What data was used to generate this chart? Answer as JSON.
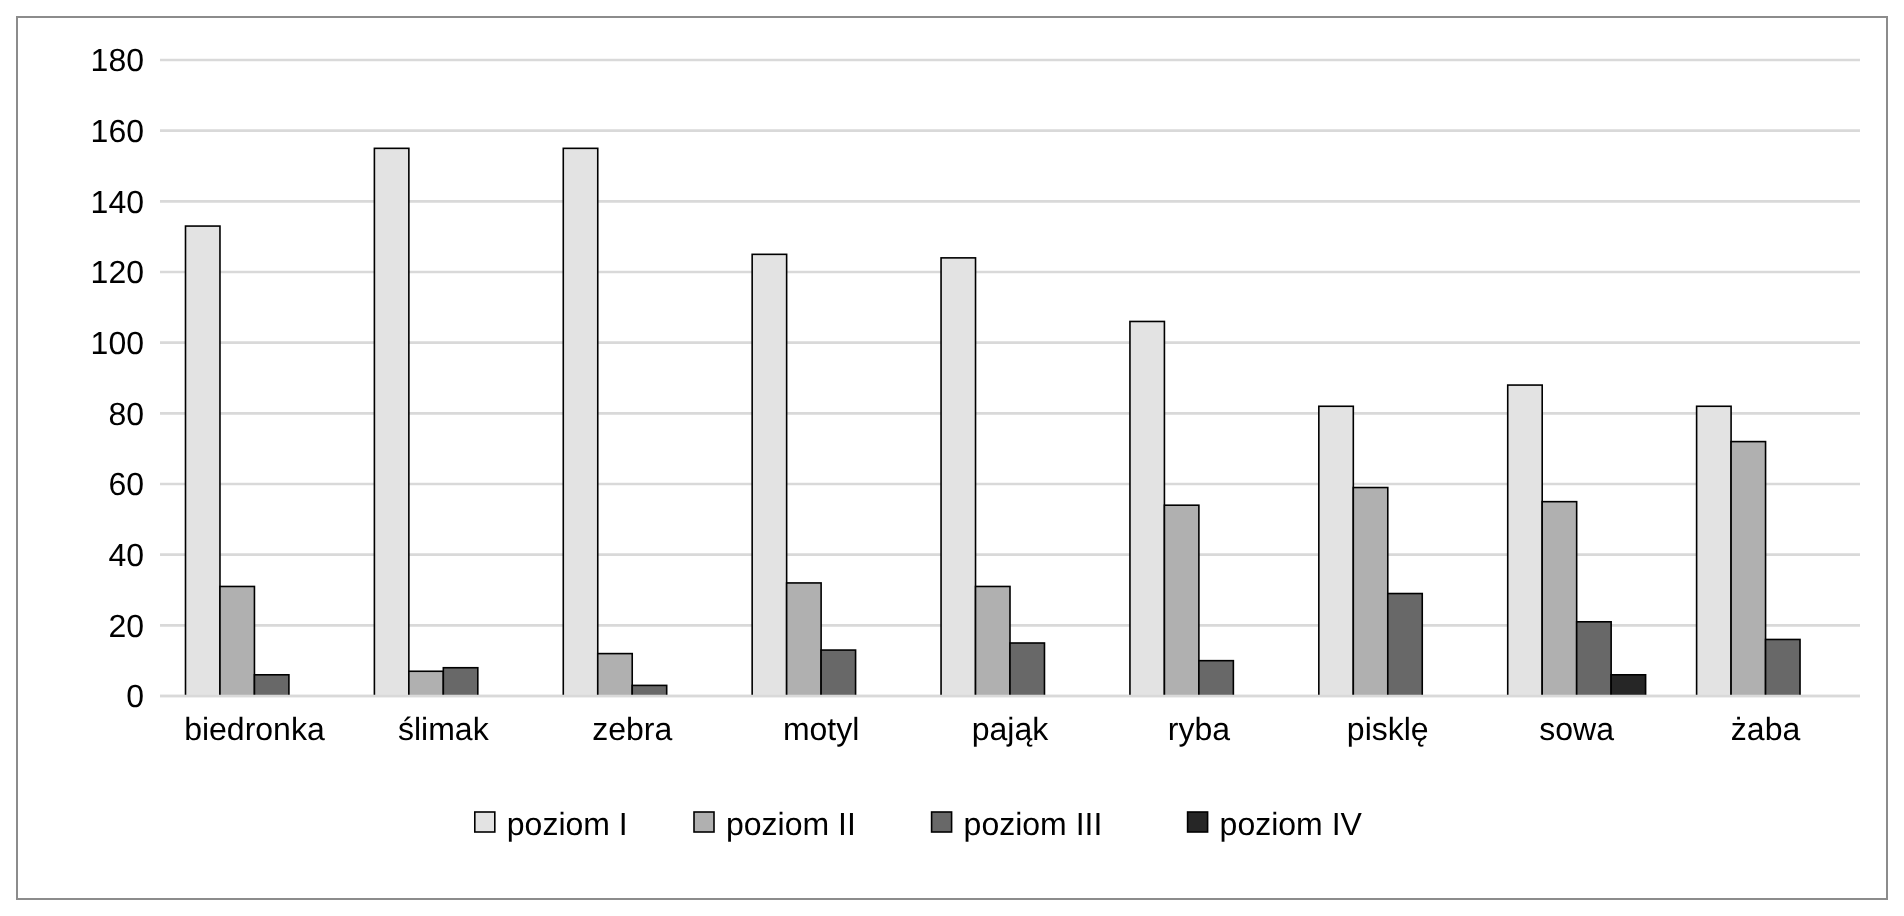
{
  "chart_data": {
    "type": "bar",
    "categories": [
      "biedronka",
      "ślimak",
      "zebra",
      "motyl",
      "pająk",
      "ryba",
      "pisklę",
      "sowa",
      "żaba"
    ],
    "series": [
      {
        "name": "poziom I",
        "color": "#e3e3e3",
        "values": [
          133,
          155,
          155,
          125,
          124,
          106,
          82,
          88,
          82
        ]
      },
      {
        "name": "poziom II",
        "color": "#b0b0b0",
        "values": [
          31,
          7,
          12,
          32,
          31,
          54,
          59,
          55,
          72
        ]
      },
      {
        "name": "poziom III",
        "color": "#686868",
        "values": [
          6,
          8,
          3,
          13,
          15,
          10,
          29,
          21,
          16
        ]
      },
      {
        "name": "poziom IV",
        "color": "#262626",
        "values": [
          0,
          0,
          0,
          0,
          0,
          0,
          0,
          6,
          0
        ]
      }
    ],
    "ylim": [
      0,
      180
    ],
    "yticks": [
      0,
      20,
      40,
      60,
      80,
      100,
      120,
      140,
      160,
      180
    ],
    "grid": "y",
    "legend": "bottom"
  }
}
